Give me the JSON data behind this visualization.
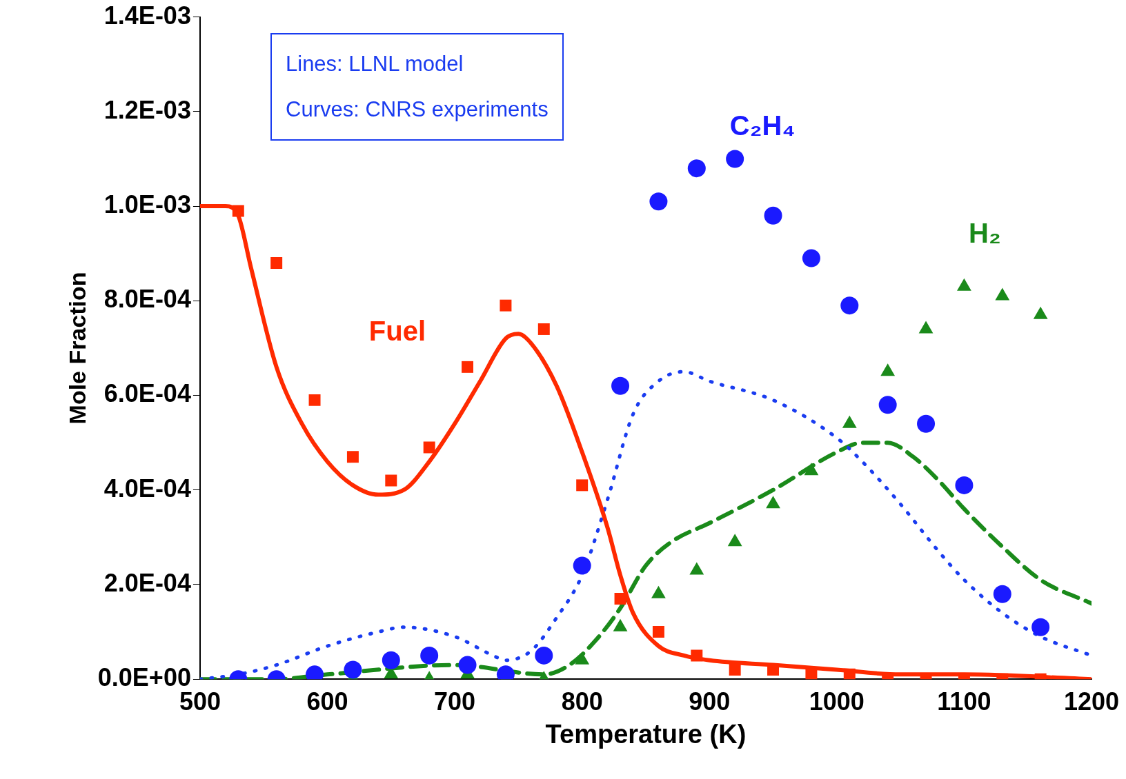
{
  "chart_data": {
    "type": "scatter",
    "xlabel": "Temperature (K)",
    "ylabel": "Mole Fraction",
    "xlim": [
      500,
      1200
    ],
    "xticks": [
      500,
      600,
      700,
      800,
      900,
      1000,
      1100,
      1200
    ],
    "ylim": [
      0,
      0.0014
    ],
    "yticks": [
      {
        "value": 0,
        "label": "0.0E+00"
      },
      {
        "value": 0.0002,
        "label": "2.0E-04"
      },
      {
        "value": 0.0004,
        "label": "4.0E-04"
      },
      {
        "value": 0.0006,
        "label": "6.0E-04"
      },
      {
        "value": 0.0008,
        "label": "8.0E-04"
      },
      {
        "value": 0.001,
        "label": "1.0E-03"
      },
      {
        "value": 0.0012,
        "label": "1.2E-03"
      },
      {
        "value": 0.0014,
        "label": "1.4E-03"
      }
    ],
    "grid": false,
    "legend": false,
    "series": [
      {
        "type": "line",
        "line_style": "solid",
        "marker": "none",
        "color": "#ff2a00",
        "x": [
          500,
          520,
          530,
          540,
          560,
          580,
          600,
          620,
          640,
          660,
          680,
          700,
          720,
          740,
          750,
          760,
          780,
          800,
          820,
          830,
          840,
          860,
          880,
          900,
          950,
          1000,
          1050,
          1100,
          1200
        ],
        "values": [
          0.001,
          0.001,
          0.00098,
          0.00087,
          0.00066,
          0.00054,
          0.00046,
          0.00041,
          0.00039,
          0.0004,
          0.00046,
          0.00054,
          0.00063,
          0.00072,
          0.00073,
          0.00071,
          0.00062,
          0.00048,
          0.00032,
          0.00022,
          0.00014,
          7e-05,
          5e-05,
          4e-05,
          3e-05,
          2e-05,
          1e-05,
          1e-05,
          0
        ]
      },
      {
        "type": "line",
        "line_style": "dotted",
        "marker": "none",
        "color": "#1a3cf0",
        "x": [
          500,
          530,
          560,
          600,
          640,
          660,
          700,
          730,
          740,
          760,
          780,
          800,
          820,
          840,
          860,
          880,
          900,
          950,
          1000,
          1020,
          1050,
          1080,
          1100,
          1130,
          1160,
          1200
        ],
        "values": [
          0,
          1e-05,
          3e-05,
          7e-05,
          0.0001,
          0.00011,
          9e-05,
          5e-05,
          4e-05,
          6e-05,
          0.00013,
          0.00022,
          0.00038,
          0.00056,
          0.00063,
          0.00065,
          0.00063,
          0.00059,
          0.00051,
          0.00046,
          0.00037,
          0.00027,
          0.00021,
          0.00014,
          9e-05,
          5e-05
        ]
      },
      {
        "type": "line",
        "line_style": "dashed",
        "marker": "none",
        "color": "#1a8a1a",
        "x": [
          500,
          560,
          600,
          700,
          770,
          790,
          810,
          830,
          850,
          870,
          900,
          950,
          1000,
          1020,
          1040,
          1060,
          1080,
          1100,
          1130,
          1160,
          1200
        ],
        "values": [
          0,
          0,
          1e-05,
          3e-05,
          1e-05,
          3e-05,
          8e-05,
          0.00015,
          0.00024,
          0.00029,
          0.00033,
          0.0004,
          0.00048,
          0.0005,
          0.0005,
          0.00047,
          0.00042,
          0.00036,
          0.00028,
          0.00021,
          0.00016
        ]
      },
      {
        "name": "Fuel",
        "marker": "square",
        "color": "#ff2a00",
        "x": [
          530,
          560,
          590,
          620,
          650,
          680,
          710,
          740,
          770,
          800,
          830,
          860,
          890,
          920,
          950,
          980,
          1010,
          1040,
          1070,
          1100,
          1130,
          1160
        ],
        "values": [
          0.00099,
          0.00088,
          0.00059,
          0.00047,
          0.00042,
          0.00049,
          0.00066,
          0.00079,
          0.00074,
          0.00041,
          0.00017,
          0.0001,
          5e-05,
          2e-05,
          2e-05,
          1e-05,
          1e-05,
          0,
          0,
          0,
          0,
          0
        ]
      },
      {
        "name": "C₂H₄",
        "marker": "circle",
        "color": "#1a1aff",
        "x": [
          530,
          560,
          590,
          620,
          650,
          680,
          710,
          740,
          770,
          800,
          830,
          860,
          890,
          920,
          950,
          980,
          1010,
          1040,
          1070,
          1100,
          1130,
          1160
        ],
        "values": [
          0,
          0,
          1e-05,
          2e-05,
          4e-05,
          5e-05,
          3e-05,
          1e-05,
          5e-05,
          0.00024,
          0.00062,
          0.00101,
          0.00108,
          0.0011,
          0.00098,
          0.00089,
          0.00079,
          0.00058,
          0.00054,
          0.00041,
          0.00018,
          0.00011
        ]
      },
      {
        "name": "H₂",
        "marker": "triangle",
        "color": "#1a8a1a",
        "x": [
          530,
          560,
          590,
          620,
          650,
          680,
          710,
          740,
          770,
          800,
          830,
          860,
          890,
          920,
          950,
          980,
          1010,
          1040,
          1070,
          1100,
          1130,
          1160
        ],
        "values": [
          0,
          null,
          null,
          0,
          1e-05,
          0,
          1e-05,
          0,
          0,
          4e-05,
          0.00011,
          0.00018,
          0.00023,
          0.00029,
          0.00037,
          0.00044,
          0.00054,
          0.00065,
          0.00074,
          0.00083,
          0.00081,
          0.00077
        ]
      }
    ],
    "annotations": [
      "Lines: LLNL model",
      "Curves: CNRS experiments"
    ]
  }
}
